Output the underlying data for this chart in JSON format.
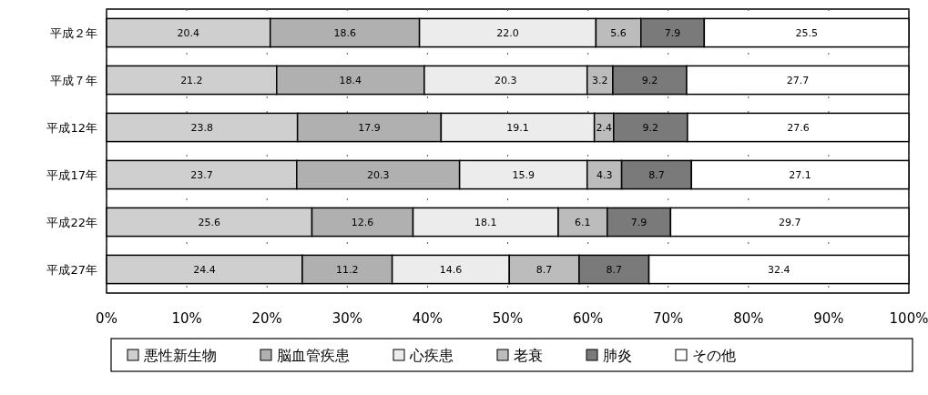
{
  "chart_data": {
    "type": "bar",
    "orientation": "horizontal",
    "stacked": true,
    "grid": "x",
    "legend": "bottom",
    "categories": [
      "平成２年",
      "平成７年",
      "平成12年",
      "平成17年",
      "平成22年",
      "平成27年"
    ],
    "series": [
      {
        "name": "悪性新生物",
        "color": "#cfcfcf",
        "values": [
          20.4,
          21.2,
          23.8,
          23.7,
          25.6,
          24.4
        ],
        "value_labels": [
          "20.4",
          "21.2",
          "23.8",
          "23.7",
          "25.6",
          "24.4"
        ]
      },
      {
        "name": "脳血管疾患",
        "color": "#b0b0b0",
        "values": [
          18.6,
          18.4,
          17.9,
          20.3,
          12.6,
          11.2
        ],
        "value_labels": [
          "18.6",
          "18.4",
          "17.9",
          "20.3",
          "12.6",
          "11.2"
        ]
      },
      {
        "name": "心疾患",
        "color": "#ececec",
        "values": [
          22.0,
          20.3,
          19.1,
          15.9,
          18.1,
          14.6
        ],
        "value_labels": [
          "22.0",
          "20.3",
          "19.1",
          "15.9",
          "18.1",
          "14.6"
        ]
      },
      {
        "name": "老衰",
        "color": "#bcbcbc",
        "values": [
          5.6,
          3.2,
          2.4,
          4.3,
          6.1,
          8.7
        ],
        "value_labels": [
          "5.6",
          "3.2",
          "2.4",
          "4.3",
          "6.1",
          "8.7"
        ]
      },
      {
        "name": "肺炎",
        "color": "#7a7a7a",
        "values": [
          7.9,
          9.2,
          9.2,
          8.7,
          7.9,
          8.7
        ],
        "value_labels": [
          "7.9",
          "9.2",
          "9.2",
          "8.7",
          "7.9",
          "8.7"
        ]
      },
      {
        "name": "その他",
        "color": "#ffffff",
        "values": [
          25.5,
          27.7,
          27.6,
          27.1,
          29.7,
          32.4
        ],
        "value_labels": [
          "25.5",
          "27.7",
          "27.6",
          "27.1",
          "29.7",
          "32.4"
        ]
      }
    ],
    "xlim": [
      0,
      100
    ],
    "xticks": [
      {
        "value": 0,
        "label": "0%"
      },
      {
        "value": 10,
        "label": "10%"
      },
      {
        "value": 20,
        "label": "20%"
      },
      {
        "value": 30,
        "label": "30%"
      },
      {
        "value": 40,
        "label": "40%"
      },
      {
        "value": 50,
        "label": "50%"
      },
      {
        "value": 60,
        "label": "60%"
      },
      {
        "value": 70,
        "label": "70%"
      },
      {
        "value": 80,
        "label": "80%"
      },
      {
        "value": 90,
        "label": "90%"
      },
      {
        "value": 100,
        "label": "100%"
      }
    ]
  }
}
